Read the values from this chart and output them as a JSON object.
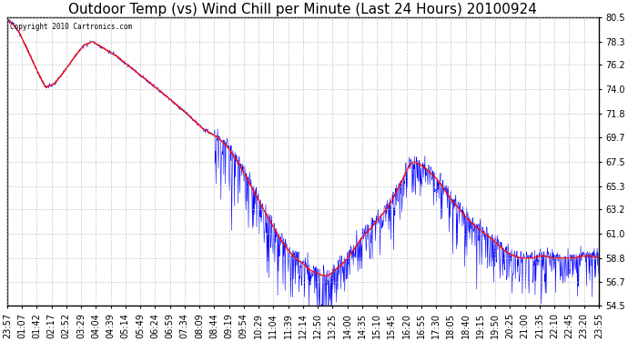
{
  "title": "Outdoor Temp (vs) Wind Chill per Minute (Last 24 Hours) 20100924",
  "copyright_text": "Copyright 2010 Cartronics.com",
  "yticks": [
    54.5,
    56.7,
    58.8,
    61.0,
    63.2,
    65.3,
    67.5,
    69.7,
    71.8,
    74.0,
    76.2,
    78.3,
    80.5
  ],
  "ylim": [
    54.5,
    80.5
  ],
  "xtick_labels": [
    "23:57",
    "01:07",
    "01:42",
    "02:17",
    "02:52",
    "03:29",
    "04:04",
    "04:39",
    "05:14",
    "05:49",
    "06:24",
    "06:59",
    "07:34",
    "08:09",
    "08:44",
    "09:19",
    "09:54",
    "10:29",
    "11:04",
    "11:39",
    "12:14",
    "12:50",
    "13:25",
    "14:00",
    "14:35",
    "15:10",
    "15:45",
    "16:20",
    "16:55",
    "17:30",
    "18:05",
    "18:40",
    "19:15",
    "19:50",
    "20:25",
    "21:00",
    "21:35",
    "22:10",
    "22:45",
    "23:20",
    "23:55"
  ],
  "background_color": "#ffffff",
  "plot_bg_color": "#ffffff",
  "grid_color": "#bbbbbb",
  "line_color_blue": "#0000ff",
  "line_color_red": "#ff0000",
  "title_fontsize": 11,
  "tick_fontsize": 7,
  "figwidth": 6.9,
  "figheight": 3.75,
  "dpi": 100
}
